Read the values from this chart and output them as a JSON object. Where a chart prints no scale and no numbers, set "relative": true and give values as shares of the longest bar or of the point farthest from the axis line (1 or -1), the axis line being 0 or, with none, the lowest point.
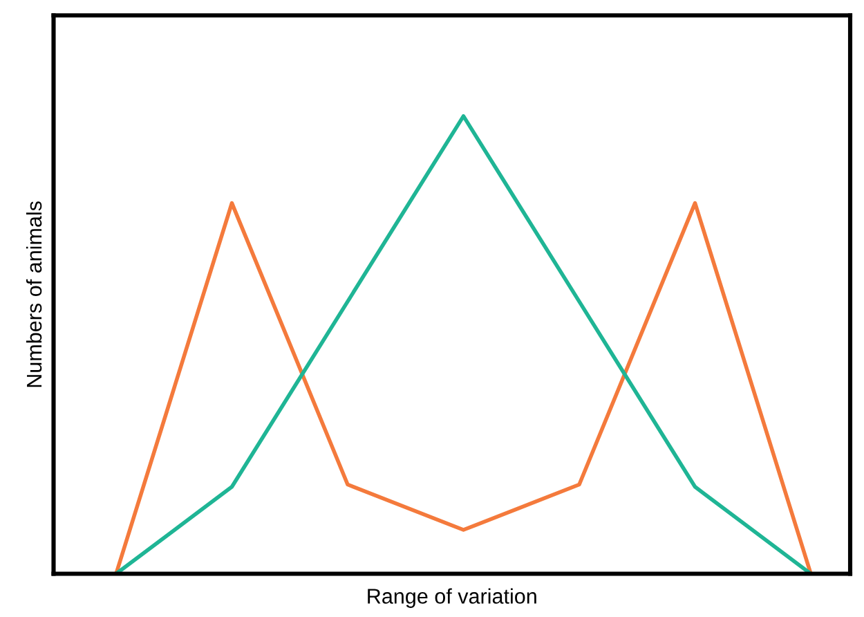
{
  "chart_data": {
    "type": "line",
    "relative": true,
    "xlabel": "Range of variation",
    "ylabel": "Numbers of animals",
    "categories": [
      null,
      null,
      null,
      null,
      null,
      null,
      null
    ],
    "series": [
      {
        "color": "#f47a3c",
        "values": [
          0,
          0.81,
          0.195,
          0.096,
          0.195,
          0.81,
          0
        ]
      },
      {
        "color": "#1fb595",
        "values": [
          0,
          0.19,
          0.595,
          1,
          0.595,
          0.19,
          0
        ]
      }
    ],
    "grid": false,
    "legend": false,
    "marker": "none",
    "line_style": "solid"
  }
}
